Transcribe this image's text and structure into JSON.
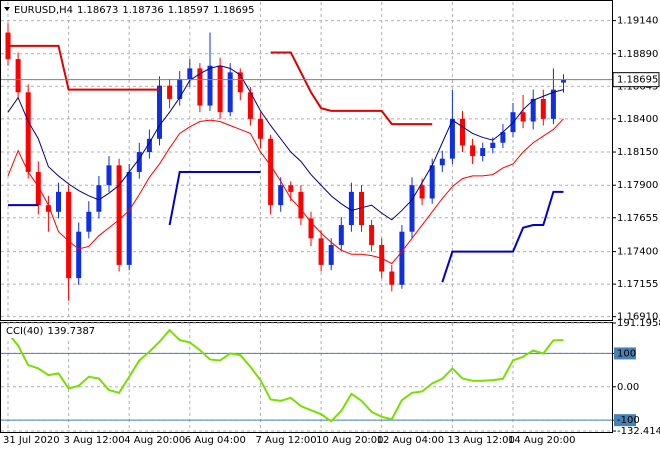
{
  "chart_data": [
    {
      "type": "candlestick",
      "title": "EURUSD,H4",
      "categories": [
        "31 Jul 2020",
        null,
        null,
        null,
        null,
        null,
        "3 Aug 12:00",
        null,
        null,
        null,
        null,
        null,
        "4 Aug 20:00",
        null,
        null,
        null,
        null,
        null,
        "6 Aug 04:00",
        null,
        null,
        null,
        null,
        null,
        null,
        "7 Aug 12:00",
        null,
        null,
        null,
        null,
        null,
        "10 Aug 20:00",
        null,
        null,
        null,
        null,
        null,
        "12 Aug 04:00",
        null,
        null,
        null,
        null,
        null,
        null,
        "13 Aug 12:00",
        null,
        null,
        null,
        null,
        null,
        "14 Aug 20:00",
        null,
        null,
        null,
        null,
        null
      ],
      "open": [
        1.1905,
        1.1885,
        1.186,
        1.18,
        1.1775,
        1.177,
        1.1785,
        1.172,
        1.1755,
        1.177,
        1.179,
        1.1805,
        1.173,
        1.18,
        1.1815,
        1.1825,
        1.1865,
        1.1855,
        1.187,
        1.1878,
        1.185,
        1.188,
        1.1845,
        1.1875,
        1.186,
        1.184,
        1.1825,
        1.1775,
        1.179,
        1.1785,
        1.1765,
        1.175,
        1.173,
        1.1745,
        1.176,
        1.1785,
        1.176,
        1.1745,
        1.1725,
        1.1715,
        1.1755,
        1.179,
        1.178,
        1.1805,
        1.181,
        1.184,
        1.182,
        1.1812,
        1.1818,
        1.1822,
        1.183,
        1.1845,
        1.1838,
        1.1855,
        1.184,
        1.18673
      ],
      "high": [
        1.1912,
        1.189,
        1.1866,
        1.1808,
        1.1782,
        1.1792,
        1.179,
        1.1762,
        1.1778,
        1.1797,
        1.1812,
        1.181,
        1.1806,
        1.1822,
        1.1832,
        1.1872,
        1.187,
        1.1876,
        1.1885,
        1.1882,
        1.1905,
        1.1886,
        1.1882,
        1.1878,
        1.1864,
        1.1845,
        1.1828,
        1.1796,
        1.1793,
        1.179,
        1.177,
        1.1756,
        1.175,
        1.1766,
        1.1792,
        1.179,
        1.1764,
        1.175,
        1.173,
        1.176,
        1.1796,
        1.1795,
        1.181,
        1.1816,
        1.1862,
        1.1846,
        1.1825,
        1.1822,
        1.1826,
        1.1836,
        1.1852,
        1.1858,
        1.1862,
        1.1862,
        1.1878,
        1.18736
      ],
      "low": [
        1.188,
        1.1855,
        1.1795,
        1.1768,
        1.1755,
        1.1765,
        1.1703,
        1.1715,
        1.175,
        1.1765,
        1.1785,
        1.1725,
        1.1726,
        1.1795,
        1.181,
        1.182,
        1.1848,
        1.185,
        1.1864,
        1.1845,
        1.1846,
        1.184,
        1.1842,
        1.1854,
        1.1835,
        1.1818,
        1.1768,
        1.177,
        1.1778,
        1.176,
        1.1744,
        1.1725,
        1.1726,
        1.174,
        1.1755,
        1.1755,
        1.174,
        1.172,
        1.171,
        1.1712,
        1.175,
        1.1775,
        1.1776,
        1.18,
        1.1806,
        1.1815,
        1.1806,
        1.1808,
        1.1814,
        1.1818,
        1.1826,
        1.1833,
        1.1832,
        1.1835,
        1.1836,
        1.18597
      ],
      "close": [
        1.1885,
        1.186,
        1.18,
        1.1775,
        1.177,
        1.1785,
        1.172,
        1.1755,
        1.177,
        1.179,
        1.1805,
        1.173,
        1.18,
        1.1815,
        1.1825,
        1.1865,
        1.1855,
        1.187,
        1.1878,
        1.185,
        1.188,
        1.1845,
        1.1875,
        1.186,
        1.184,
        1.1825,
        1.1775,
        1.179,
        1.1785,
        1.1765,
        1.175,
        1.173,
        1.1745,
        1.176,
        1.1785,
        1.176,
        1.1745,
        1.1725,
        1.1715,
        1.1755,
        1.179,
        1.178,
        1.1805,
        1.181,
        1.184,
        1.182,
        1.1812,
        1.1818,
        1.1822,
        1.183,
        1.1845,
        1.1838,
        1.1855,
        1.184,
        1.1862,
        1.18695
      ],
      "up_color": "#1030e0",
      "down_color": "#ff0000",
      "lines": [
        {
          "color": "#000080",
          "width": 1,
          "values": [
            1.1845,
            1.1856,
            1.1838,
            1.1825,
            1.1804,
            1.1797,
            1.1791,
            1.1786,
            1.1782,
            1.1779,
            1.1784,
            1.179,
            1.18,
            1.181,
            1.1822,
            1.1835,
            1.1845,
            1.1856,
            1.1869,
            1.1874,
            1.1878,
            1.188,
            1.1878,
            1.1873,
            1.186,
            1.1846,
            1.1835,
            1.1825,
            1.1815,
            1.1808,
            1.1798,
            1.179,
            1.1782,
            1.1776,
            1.1771,
            1.1773,
            1.1775,
            1.1769,
            1.1764,
            1.1771,
            1.1779,
            1.1792,
            1.1805,
            1.1822,
            1.1839,
            1.1834,
            1.1829,
            1.1826,
            1.1824,
            1.183,
            1.1837,
            1.1847,
            1.1854,
            1.1857,
            1.186,
            1.1862
          ]
        },
        {
          "color": "#ff0000",
          "width": 1,
          "values": [
            1.1797,
            1.1816,
            1.18,
            1.1789,
            1.1775,
            1.1755,
            1.1748,
            1.1742,
            1.1744,
            1.1752,
            1.1758,
            1.1764,
            1.1771,
            1.1783,
            1.1796,
            1.1806,
            1.1818,
            1.1829,
            1.1834,
            1.1838,
            1.1839,
            1.1838,
            1.1835,
            1.1832,
            1.1829,
            1.1815,
            1.1805,
            1.1793,
            1.178,
            1.1772,
            1.1762,
            1.1754,
            1.1747,
            1.1741,
            1.1738,
            1.1738,
            1.1737,
            1.1735,
            1.1731,
            1.174,
            1.175,
            1.176,
            1.177,
            1.178,
            1.1789,
            1.1795,
            1.1797,
            1.1797,
            1.1798,
            1.1803,
            1.1806,
            1.1815,
            1.1822,
            1.1827,
            1.1832,
            1.184
          ]
        },
        {
          "color": "#e00000",
          "width": 2,
          "values": [
            1.1895,
            1.1895,
            1.1895,
            1.1895,
            1.1895,
            1.1895,
            1.1862,
            1.1862,
            1.1862,
            1.1862,
            1.1862,
            1.1862,
            1.1862,
            1.1862,
            1.1862,
            1.1862,
            null,
            null,
            null,
            null,
            null,
            null,
            null,
            null,
            null,
            null,
            1.189,
            1.189,
            1.189,
            1.1875,
            1.186,
            1.1848,
            1.1846,
            1.1846,
            1.1846,
            1.1846,
            1.1846,
            1.1846,
            1.1836,
            1.1836,
            1.1836,
            1.1836,
            1.1836,
            null,
            null,
            null,
            null,
            null,
            null,
            null,
            null,
            null,
            null,
            null,
            null,
            null
          ]
        },
        {
          "color": "#0000d0",
          "width": 2,
          "values": [
            1.1775,
            1.1775,
            1.1775,
            1.1775,
            null,
            null,
            null,
            null,
            null,
            null,
            null,
            null,
            null,
            null,
            null,
            null,
            1.176,
            1.18,
            1.18,
            1.18,
            1.18,
            1.18,
            1.18,
            1.18,
            1.18,
            1.18,
            null,
            null,
            null,
            null,
            null,
            null,
            null,
            null,
            null,
            null,
            null,
            null,
            null,
            null,
            null,
            null,
            null,
            1.1717,
            1.174,
            1.174,
            1.174,
            1.174,
            1.174,
            1.174,
            1.174,
            1.1758,
            1.176,
            1.176,
            1.1785,
            1.1785
          ]
        }
      ],
      "ylim": [
        1.169,
        1.1928
      ],
      "yticks": [
        {
          "value": 1.1914,
          "label": "1.19140"
        },
        {
          "value": 1.1889,
          "label": "1.18890"
        },
        1.18645,
        {
          "value": 1.184,
          "label": "1.18400"
        },
        {
          "value": 1.1815,
          "label": "1.18150"
        },
        {
          "value": 1.179,
          "label": "1.17900"
        },
        1.17655,
        {
          "value": 1.174,
          "label": "1.17400"
        },
        1.17155,
        {
          "value": 1.1691,
          "label": "1.16910"
        }
      ],
      "grid": true
    },
    {
      "type": "line",
      "title": "CCI(40)",
      "color": "#77e000",
      "values": [
        160,
        124,
        65,
        55,
        35,
        40,
        -5,
        3,
        30,
        25,
        -10,
        -18,
        30,
        79,
        105,
        135,
        170,
        140,
        133,
        110,
        82,
        79,
        100,
        95,
        60,
        20,
        -38,
        -42,
        -33,
        -58,
        -70,
        -82,
        -103,
        -72,
        -21,
        -42,
        -75,
        -90,
        -97,
        -40,
        -18,
        -14,
        10,
        24,
        55,
        25,
        18,
        18,
        20,
        24,
        79,
        90,
        109,
        100,
        139,
        139.7387
      ],
      "ylim": [
        -132.4148,
        191.1958
      ],
      "yticks": [
        191.1958,
        100,
        {
          "value": 0,
          "label": "0.00"
        },
        -100,
        -132.4148
      ],
      "levels": [
        100,
        -100
      ],
      "level_color": "#4682b4",
      "grid": true
    }
  ]
}
